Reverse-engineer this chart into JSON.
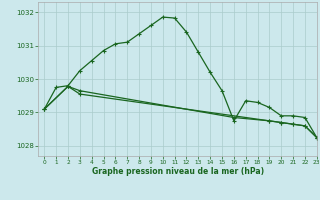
{
  "title": "Graphe pression niveau de la mer (hPa)",
  "bg_color": "#cce8ec",
  "grid_color": "#aacccc",
  "line_color": "#1a6620",
  "xlim": [
    -0.5,
    23
  ],
  "ylim": [
    1027.7,
    1032.3
  ],
  "yticks": [
    1028,
    1029,
    1030,
    1031,
    1032
  ],
  "xticks": [
    0,
    1,
    2,
    3,
    4,
    5,
    6,
    7,
    8,
    9,
    10,
    11,
    12,
    13,
    14,
    15,
    16,
    17,
    18,
    19,
    20,
    21,
    22,
    23
  ],
  "series1_x": [
    0,
    1,
    2,
    3,
    4,
    5,
    6,
    7,
    8,
    9,
    10,
    11,
    12,
    13,
    14,
    15,
    16,
    17,
    18,
    19,
    20,
    21,
    22,
    23
  ],
  "series1_y": [
    1029.1,
    1029.75,
    1029.8,
    1030.25,
    1030.55,
    1030.85,
    1031.05,
    1031.1,
    1031.35,
    1031.6,
    1031.85,
    1031.82,
    1031.4,
    1030.8,
    1030.2,
    1029.65,
    1028.75,
    1029.35,
    1029.3,
    1029.15,
    1028.9,
    1028.9,
    1028.85,
    1028.25
  ],
  "series2_x": [
    0,
    2,
    3,
    16,
    19,
    20,
    21,
    22,
    23
  ],
  "series2_y": [
    1029.1,
    1029.78,
    1029.65,
    1028.85,
    1028.75,
    1028.7,
    1028.65,
    1028.6,
    1028.25
  ],
  "series3_x": [
    0,
    2,
    3,
    19,
    20,
    21,
    22,
    23
  ],
  "series3_y": [
    1029.1,
    1029.78,
    1029.55,
    1028.75,
    1028.7,
    1028.65,
    1028.6,
    1028.25
  ]
}
